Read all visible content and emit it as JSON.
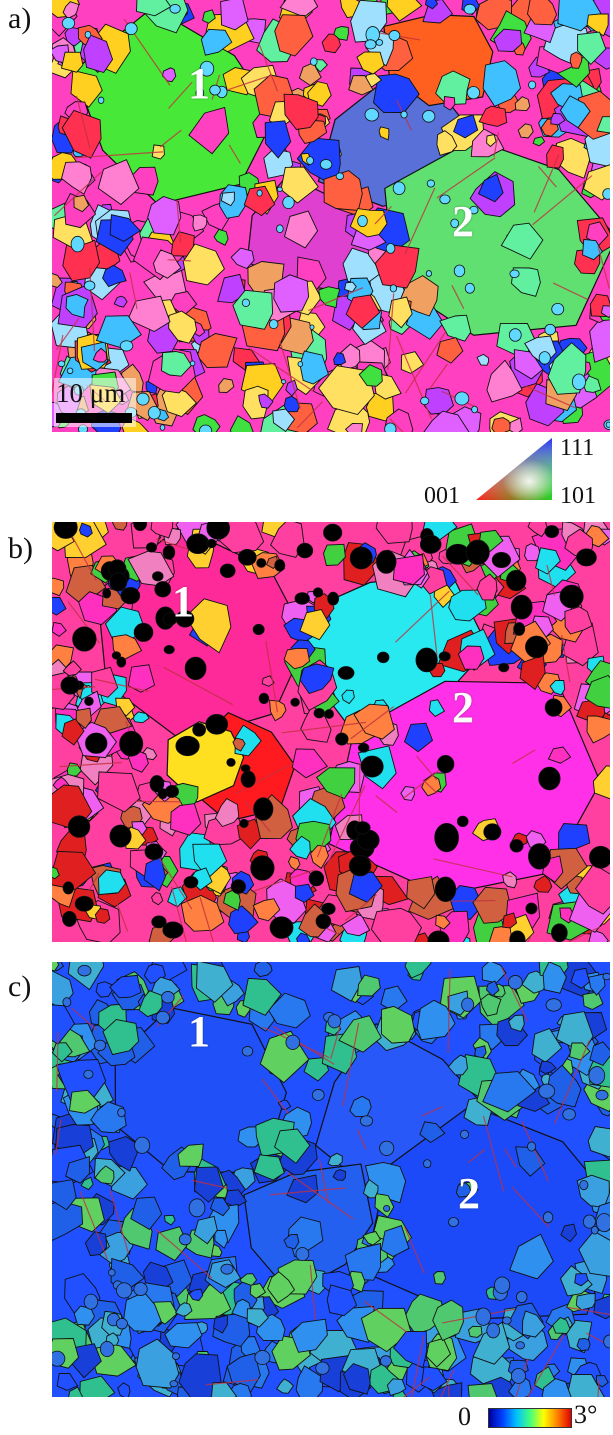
{
  "panels": [
    {
      "id": "a",
      "label": "a)",
      "grain_labels": [
        "1",
        "2"
      ],
      "scale_bar": "10 μm"
    },
    {
      "id": "b",
      "label": "b)",
      "grain_labels": [
        "1",
        "2"
      ]
    },
    {
      "id": "c",
      "label": "c)",
      "grain_labels": [
        "1",
        "2"
      ]
    }
  ],
  "ipf_legend": {
    "top": "111",
    "left": "001",
    "right": "101"
  },
  "kam_legend": {
    "min": "0",
    "max": "3°"
  }
}
